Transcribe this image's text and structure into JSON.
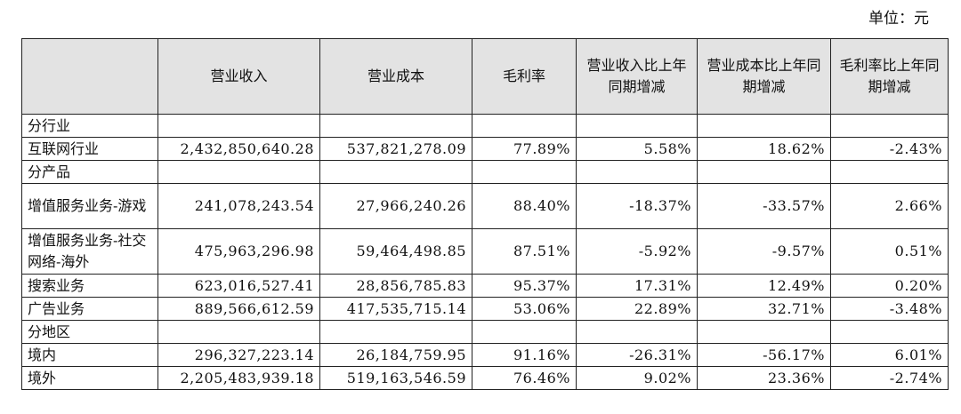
{
  "unit_label": "单位：元",
  "headers": [
    "",
    "营业收入",
    "营业成本",
    "毛利率",
    "营业收入比上年同期增减",
    "营业成本比上年同期增减",
    "毛利率比上年同期增减"
  ],
  "rows": [
    {
      "label": "分行业",
      "section": true
    },
    {
      "label": "互联网行业",
      "revenue": "2,432,850,640.28",
      "cost": "537,821,278.09",
      "margin": "77.89%",
      "rev_chg": "5.58%",
      "cost_chg": "18.62%",
      "margin_chg": "-2.43%"
    },
    {
      "label": "分产品",
      "section": true
    },
    {
      "label": "增值服务业务-游戏",
      "revenue": "241,078,243.54",
      "cost": "27,966,240.26",
      "margin": "88.40%",
      "rev_chg": "-18.37%",
      "cost_chg": "-33.57%",
      "margin_chg": "2.66%",
      "tall": true
    },
    {
      "label": "增值服务业务-社交网络-海外",
      "revenue": "475,963,296.98",
      "cost": "59,464,498.85",
      "margin": "87.51%",
      "rev_chg": "-5.92%",
      "cost_chg": "-9.57%",
      "margin_chg": "0.51%",
      "tall": true
    },
    {
      "label": "搜索业务",
      "revenue": "623,016,527.41",
      "cost": "28,856,785.83",
      "margin": "95.37%",
      "rev_chg": "17.31%",
      "cost_chg": "12.49%",
      "margin_chg": "0.20%"
    },
    {
      "label": "广告业务",
      "revenue": "889,566,612.59",
      "cost": "417,535,715.14",
      "margin": "53.06%",
      "rev_chg": "22.89%",
      "cost_chg": "32.71%",
      "margin_chg": "-3.48%"
    },
    {
      "label": "分地区",
      "section": true
    },
    {
      "label": "境内",
      "revenue": "296,327,223.14",
      "cost": "26,184,759.95",
      "margin": "91.16%",
      "rev_chg": "-26.31%",
      "cost_chg": "-56.17%",
      "margin_chg": "6.01%"
    },
    {
      "label": "境外",
      "revenue": "2,205,483,939.18",
      "cost": "519,163,546.59",
      "margin": "76.46%",
      "rev_chg": "9.02%",
      "cost_chg": "23.36%",
      "margin_chg": "-2.74%"
    }
  ]
}
